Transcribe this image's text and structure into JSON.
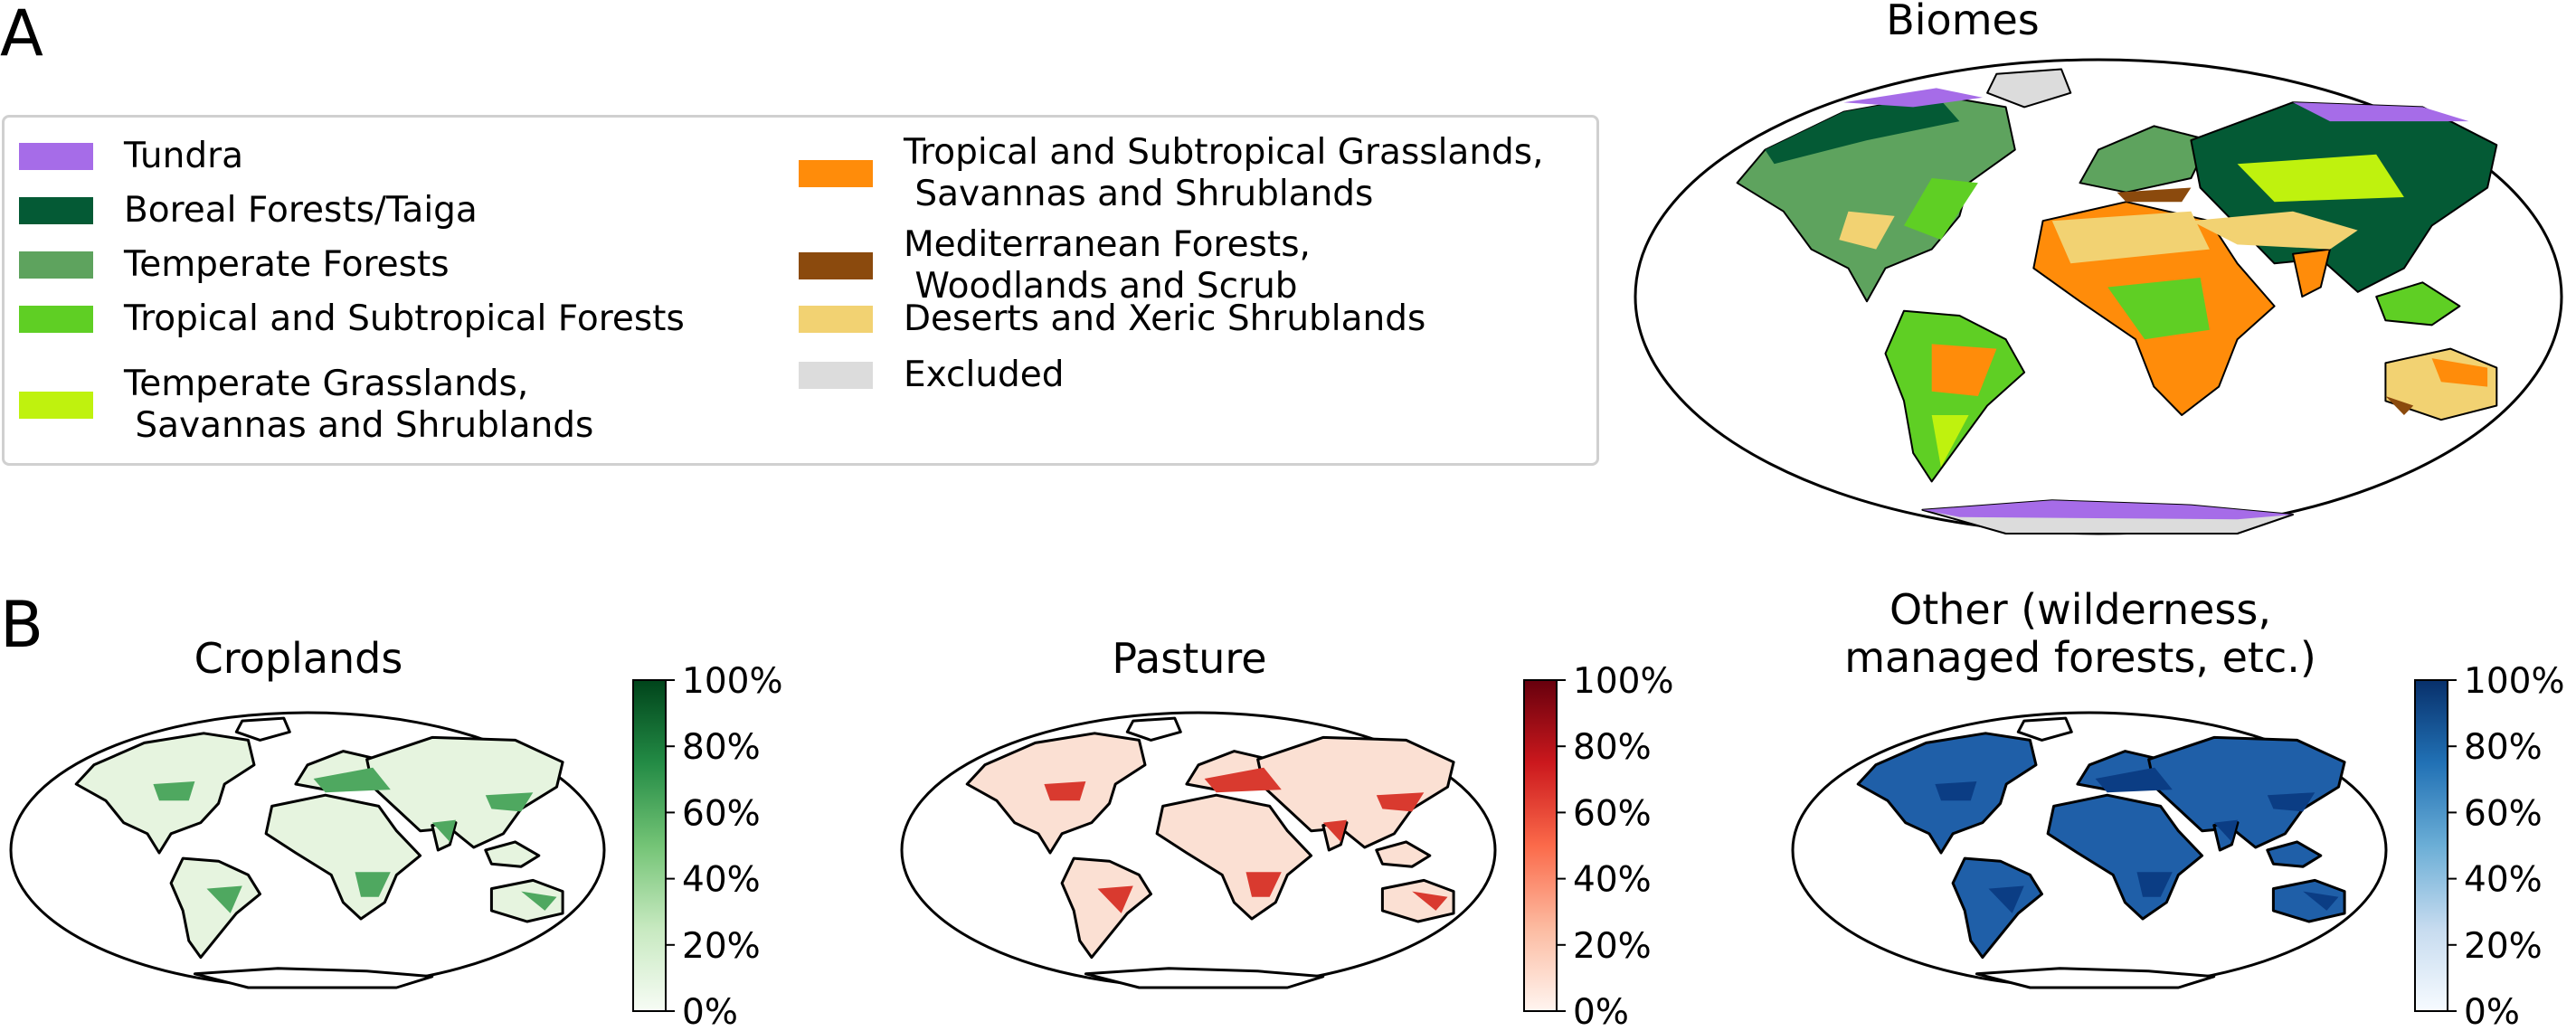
{
  "panel_a": {
    "label": "A",
    "map_title": "Biomes",
    "legend": [
      {
        "label": "Tundra",
        "color": "#a66ce8"
      },
      {
        "label": "Boreal Forests/Taiga",
        "color": "#045a35"
      },
      {
        "label": "Temperate Forests",
        "color": "#5ea35e"
      },
      {
        "label": "Tropical and Subtropical Forests",
        "color": "#5fcf24"
      },
      {
        "label": "Temperate Grasslands,\n Savannas and Shrublands",
        "color": "#bff20e"
      },
      {
        "label": "Tropical and Subtropical Grasslands,\n Savannas and Shrublands",
        "color": "#ff8c0a"
      },
      {
        "label": "Mediterranean Forests,\n Woodlands and Scrub",
        "color": "#8b4a0d"
      },
      {
        "label": "Deserts and Xeric Shrublands",
        "color": "#f2d272"
      },
      {
        "label": "Excluded",
        "color": "#dcdcdc"
      }
    ]
  },
  "panel_b": {
    "label": "B",
    "maps": [
      {
        "title": "Croplands",
        "colormap": [
          "#f7fcf5",
          "#c7e9c0",
          "#74c476",
          "#238b45",
          "#00441b"
        ],
        "land_color": "#e6f4df",
        "accent": "#4fa860",
        "colorbar_ticks": [
          "100%",
          "80%",
          "60%",
          "40%",
          "20%",
          "0%"
        ]
      },
      {
        "title": "Pasture",
        "colormap": [
          "#fff5f0",
          "#fcbba1",
          "#fb6a4a",
          "#cb181d",
          "#67000d"
        ],
        "land_color": "#fbe0d3",
        "accent": "#d93a2f",
        "colorbar_ticks": [
          "100%",
          "80%",
          "60%",
          "40%",
          "20%",
          "0%"
        ]
      },
      {
        "title": "Other (wilderness,\nmanaged forests, etc.)",
        "colormap": [
          "#f7fbff",
          "#c6dbef",
          "#6baed6",
          "#2171b5",
          "#08306b"
        ],
        "land_color": "#1f5fa8",
        "accent": "#0b3d84",
        "colorbar_ticks": [
          "100%",
          "80%",
          "60%",
          "40%",
          "20%",
          "0%"
        ]
      }
    ]
  }
}
